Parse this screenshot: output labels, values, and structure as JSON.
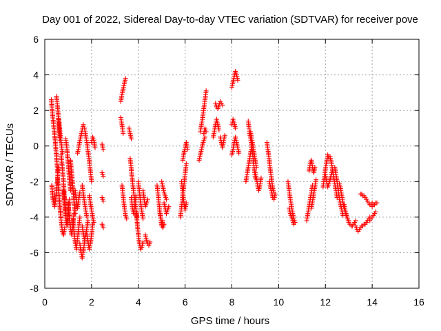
{
  "chart_data": {
    "type": "scatter",
    "title": "Day 001 of 2022, Sidereal Day-to-day VTEC variation (SDTVAR) for receiver pove",
    "xlabel": "GPS time / hours",
    "ylabel": "SDTVAR / TECUs",
    "xlim": [
      0,
      16
    ],
    "ylim": [
      -8,
      6
    ],
    "xticks": [
      0,
      2,
      4,
      6,
      8,
      10,
      12,
      14,
      16
    ],
    "yticks": [
      -8,
      -6,
      -4,
      -2,
      0,
      2,
      4,
      6
    ],
    "xtick_labels": [
      "0",
      "2",
      "4",
      "6",
      "8",
      "10",
      "12",
      "14",
      "16"
    ],
    "ytick_labels": [
      "-8",
      "-6",
      "-4",
      "-2",
      "0",
      "2",
      "4",
      "6"
    ],
    "grid": true,
    "marker": "+",
    "color": "#ff0000",
    "segments": [
      {
        "x": [
          0.28,
          0.33,
          0.4,
          0.45,
          0.5,
          0.55
        ],
        "y": [
          2.6,
          1.8,
          0.9,
          0.2,
          -0.6,
          -1.5
        ]
      },
      {
        "x": [
          0.3,
          0.35,
          0.42,
          0.5,
          0.58
        ],
        "y": [
          -2.2,
          -3.0,
          -3.4,
          -2.6,
          -1.2
        ]
      },
      {
        "x": [
          0.5,
          0.55,
          0.6,
          0.65
        ],
        "y": [
          2.8,
          2.2,
          1.2,
          0.3
        ]
      },
      {
        "x": [
          0.55,
          0.6,
          0.65,
          0.7,
          0.75,
          0.8,
          0.85
        ],
        "y": [
          -1.8,
          -2.6,
          -3.5,
          -4.2,
          -4.8,
          -5.0,
          -4.6
        ]
      },
      {
        "x": [
          0.6,
          0.65,
          0.7,
          0.75
        ],
        "y": [
          1.5,
          0.8,
          0.2,
          -0.4
        ]
      },
      {
        "x": [
          0.7,
          0.75,
          0.8,
          0.85,
          0.9
        ],
        "y": [
          -0.5,
          -1.2,
          -2.0,
          -3.0,
          -3.8
        ]
      },
      {
        "x": [
          0.8,
          0.85,
          0.9,
          0.95,
          1.0,
          1.05
        ],
        "y": [
          -2.5,
          -3.2,
          -4.0,
          -4.5,
          -3.8,
          -3.0
        ]
      },
      {
        "x": [
          0.9,
          0.95,
          1.0,
          1.05,
          1.1
        ],
        "y": [
          0.4,
          -0.2,
          -1.0,
          -1.8,
          -2.5
        ]
      },
      {
        "x": [
          1.0,
          1.05,
          1.1,
          1.15,
          1.2,
          1.25
        ],
        "y": [
          -3.2,
          -4.0,
          -4.6,
          -5.0,
          -4.5,
          -3.8
        ]
      },
      {
        "x": [
          1.1,
          1.15,
          1.2,
          1.25,
          1.3
        ],
        "y": [
          -0.8,
          -1.5,
          -2.3,
          -3.1,
          -3.8
        ]
      },
      {
        "x": [
          1.2,
          1.25,
          1.3,
          1.35,
          1.4,
          1.45,
          1.5
        ],
        "y": [
          -4.2,
          -4.8,
          -5.4,
          -5.8,
          -5.2,
          -4.6,
          -4.0
        ]
      },
      {
        "x": [
          1.3,
          1.35,
          1.4,
          1.45,
          1.5
        ],
        "y": [
          -2.5,
          -3.0,
          -3.5,
          -3.0,
          -2.6
        ]
      },
      {
        "x": [
          1.4,
          1.45,
          1.5,
          1.55,
          1.6,
          1.65
        ],
        "y": [
          -0.4,
          -0.1,
          0.3,
          0.6,
          0.9,
          1.2
        ]
      },
      {
        "x": [
          1.5,
          1.55,
          1.6,
          1.65,
          1.7
        ],
        "y": [
          -5.5,
          -6.0,
          -6.3,
          -5.9,
          -5.4
        ]
      },
      {
        "x": [
          1.6,
          1.65,
          1.7,
          1.75,
          1.8,
          1.85
        ],
        "y": [
          -4.5,
          -4.9,
          -5.3,
          -5.0,
          -4.6,
          -4.2
        ]
      },
      {
        "x": [
          1.6,
          1.65,
          1.7,
          1.75,
          1.8
        ],
        "y": [
          -2.2,
          -2.7,
          -3.2,
          -3.6,
          -4.0
        ]
      },
      {
        "x": [
          1.7,
          1.75,
          1.8,
          1.85,
          1.9,
          1.95,
          2.0
        ],
        "y": [
          1.0,
          0.6,
          0.2,
          -0.3,
          -0.8,
          -1.4,
          -2.0
        ]
      },
      {
        "x": [
          1.8,
          1.85,
          1.9,
          1.95,
          2.0,
          2.05
        ],
        "y": [
          -5.0,
          -5.4,
          -5.8,
          -5.5,
          -5.0,
          -4.4
        ]
      },
      {
        "x": [
          1.9,
          1.95,
          2.0,
          2.05,
          2.1
        ],
        "y": [
          -2.8,
          -3.2,
          -3.6,
          -4.0,
          -4.3
        ]
      },
      {
        "x": [
          2.0,
          2.05,
          2.1,
          2.15
        ],
        "y": [
          0.2,
          0.5,
          0.3,
          -0.1
        ]
      },
      {
        "x": [
          2.45,
          2.5
        ],
        "y": [
          0.1,
          -0.2
        ]
      },
      {
        "x": [
          2.45,
          2.5
        ],
        "y": [
          -1.5,
          -1.7
        ]
      },
      {
        "x": [
          2.45,
          2.5
        ],
        "y": [
          -2.9,
          -3.1
        ]
      },
      {
        "x": [
          2.45,
          2.5
        ],
        "y": [
          -4.4,
          -4.6
        ]
      },
      {
        "x": [
          3.25,
          3.3,
          3.35,
          3.4,
          3.45
        ],
        "y": [
          2.5,
          2.9,
          3.2,
          3.5,
          3.8
        ]
      },
      {
        "x": [
          3.25,
          3.3,
          3.35
        ],
        "y": [
          1.6,
          1.2,
          0.7
        ]
      },
      {
        "x": [
          3.3,
          3.35,
          3.4,
          3.45,
          3.5
        ],
        "y": [
          -2.2,
          -2.8,
          -3.4,
          -3.9,
          -4.1
        ]
      },
      {
        "x": [
          3.6,
          3.65,
          3.7
        ],
        "y": [
          1.0,
          0.7,
          0.4
        ]
      },
      {
        "x": [
          3.65,
          3.7,
          3.75,
          3.8,
          3.85,
          3.9,
          3.95
        ],
        "y": [
          -0.7,
          -1.3,
          -2.0,
          -2.6,
          -3.1,
          -3.6,
          -4.0
        ]
      },
      {
        "x": [
          3.7,
          3.75,
          3.8,
          3.85,
          3.9
        ],
        "y": [
          -2.9,
          -3.5,
          -3.8,
          -3.3,
          -2.8
        ]
      },
      {
        "x": [
          3.9,
          3.95,
          4.0,
          4.05,
          4.1,
          4.15,
          4.2
        ],
        "y": [
          -3.6,
          -4.3,
          -5.0,
          -5.5,
          -5.8,
          -5.7,
          -5.4
        ]
      },
      {
        "x": [
          4.0,
          4.05,
          4.1,
          4.15,
          4.2
        ],
        "y": [
          -2.0,
          -2.6,
          -3.2,
          -3.7,
          -4.1
        ]
      },
      {
        "x": [
          4.2,
          4.25,
          4.3,
          4.35,
          4.4
        ],
        "y": [
          -2.5,
          -3.0,
          -3.4,
          -3.2,
          -3.0
        ]
      },
      {
        "x": [
          4.3,
          4.35,
          4.4,
          4.45,
          4.5
        ],
        "y": [
          -5.0,
          -5.3,
          -5.5,
          -5.6,
          -5.4
        ]
      },
      {
        "x": [
          4.8,
          4.85,
          4.9,
          4.95,
          5.0,
          5.05
        ],
        "y": [
          -2.2,
          -2.8,
          -3.4,
          -4.0,
          -4.5,
          -4.2
        ]
      },
      {
        "x": [
          4.9,
          4.95,
          5.0,
          5.05,
          5.1
        ],
        "y": [
          -3.6,
          -4.0,
          -4.3,
          -4.6,
          -4.4
        ]
      },
      {
        "x": [
          5.0,
          5.05,
          5.1,
          5.15,
          5.2
        ],
        "y": [
          -2.0,
          -2.3,
          -2.6,
          -2.8,
          -3.0
        ]
      },
      {
        "x": [
          5.1,
          5.15,
          5.2,
          5.25,
          5.3
        ],
        "y": [
          -3.2,
          -3.5,
          -3.8,
          -3.6,
          -3.4
        ]
      },
      {
        "x": [
          5.8,
          5.85,
          5.9,
          5.95,
          6.0,
          6.05
        ],
        "y": [
          -4.0,
          -3.4,
          -2.8,
          -2.2,
          -1.6,
          -1.0
        ]
      },
      {
        "x": [
          5.85,
          5.9,
          5.95,
          6.0,
          6.05
        ],
        "y": [
          -2.0,
          -2.6,
          -3.2,
          -3.6,
          -3.2
        ]
      },
      {
        "x": [
          5.9,
          5.95,
          6.0,
          6.05,
          6.1
        ],
        "y": [
          -0.8,
          -0.4,
          -0.1,
          0.2,
          -0.2
        ]
      },
      {
        "x": [
          6.6,
          6.65,
          6.7,
          6.75,
          6.8,
          6.85
        ],
        "y": [
          -0.8,
          -0.5,
          -0.2,
          0.1,
          0.3,
          0.5
        ]
      },
      {
        "x": [
          6.65,
          6.7,
          6.75,
          6.8,
          6.85,
          6.9
        ],
        "y": [
          0.8,
          1.2,
          1.6,
          2.1,
          2.6,
          3.1
        ]
      },
      {
        "x": [
          6.8,
          6.85,
          6.9
        ],
        "y": [
          0.7,
          1.0,
          0.8
        ]
      },
      {
        "x": [
          7.2,
          7.25,
          7.3,
          7.35,
          7.4,
          7.45
        ],
        "y": [
          0.5,
          0.8,
          1.2,
          1.5,
          1.2,
          0.9
        ]
      },
      {
        "x": [
          7.3,
          7.35,
          7.4,
          7.45,
          7.5,
          7.55,
          7.6
        ],
        "y": [
          2.4,
          2.2,
          2.1,
          2.3,
          2.5,
          2.4,
          2.3
        ]
      },
      {
        "x": [
          7.5,
          7.55,
          7.6,
          7.65,
          7.7
        ],
        "y": [
          0.5,
          0.2,
          -0.1,
          0.3,
          0.6
        ]
      },
      {
        "x": [
          8.0,
          8.05,
          8.1,
          8.15,
          8.2,
          8.25
        ],
        "y": [
          3.3,
          3.6,
          3.9,
          4.2,
          4.0,
          3.7
        ]
      },
      {
        "x": [
          8.0,
          8.05,
          8.1,
          8.15
        ],
        "y": [
          1.2,
          1.5,
          1.3,
          1.0
        ]
      },
      {
        "x": [
          8.0,
          8.05,
          8.1,
          8.15,
          8.2,
          8.25,
          8.3
        ],
        "y": [
          -0.5,
          -0.2,
          0.2,
          0.5,
          0.2,
          -0.1,
          -0.4
        ]
      },
      {
        "x": [
          8.6,
          8.65,
          8.7,
          8.75,
          8.8,
          8.85
        ],
        "y": [
          -2.0,
          -1.6,
          -1.2,
          -0.8,
          -0.4,
          0.0
        ]
      },
      {
        "x": [
          8.7,
          8.75,
          8.8,
          8.85,
          8.9,
          8.95,
          9.0
        ],
        "y": [
          1.4,
          0.8,
          0.4,
          0.0,
          -0.6,
          -1.2,
          -1.8
        ]
      },
      {
        "x": [
          8.8,
          8.85,
          8.9,
          8.95,
          9.0,
          9.05
        ],
        "y": [
          0.8,
          0.4,
          0.0,
          -0.4,
          -0.8,
          -1.2
        ]
      },
      {
        "x": [
          9.0,
          9.05,
          9.1,
          9.15,
          9.2,
          9.25
        ],
        "y": [
          -1.5,
          -1.8,
          -2.2,
          -2.5,
          -2.2,
          -1.8
        ]
      },
      {
        "x": [
          9.5,
          9.55,
          9.6,
          9.65,
          9.7,
          9.75,
          9.8
        ],
        "y": [
          0.2,
          -0.3,
          -0.8,
          -1.4,
          -1.9,
          -2.4,
          -2.6
        ]
      },
      {
        "x": [
          9.6,
          9.65,
          9.7,
          9.75,
          9.8,
          9.85
        ],
        "y": [
          -2.0,
          -2.3,
          -2.6,
          -2.9,
          -3.0,
          -2.7
        ]
      },
      {
        "x": [
          10.4,
          10.45,
          10.5,
          10.55,
          10.6,
          10.65,
          10.7
        ],
        "y": [
          -2.0,
          -2.5,
          -3.0,
          -3.4,
          -3.8,
          -4.1,
          -4.3
        ]
      },
      {
        "x": [
          10.45,
          10.5,
          10.55,
          10.6,
          10.65
        ],
        "y": [
          -3.5,
          -3.8,
          -4.0,
          -4.2,
          -4.4
        ]
      },
      {
        "x": [
          11.2,
          11.25,
          11.3,
          11.35,
          11.4,
          11.45
        ],
        "y": [
          -4.2,
          -3.8,
          -3.4,
          -3.0,
          -2.6,
          -2.2
        ]
      },
      {
        "x": [
          11.3,
          11.35,
          11.4,
          11.45,
          11.5,
          11.55
        ],
        "y": [
          -1.4,
          -1.0,
          -0.8,
          -1.2,
          -1.5,
          -1.2
        ]
      },
      {
        "x": [
          11.4,
          11.45,
          11.5,
          11.55,
          11.6
        ],
        "y": [
          -3.5,
          -3.1,
          -2.7,
          -2.3,
          -1.9
        ]
      },
      {
        "x": [
          11.9,
          11.95,
          12.0,
          12.05,
          12.1,
          12.15
        ],
        "y": [
          -2.3,
          -1.8,
          -1.3,
          -0.9,
          -0.5,
          -0.7
        ]
      },
      {
        "x": [
          12.0,
          12.05,
          12.1,
          12.15,
          12.2,
          12.25,
          12.3
        ],
        "y": [
          -1.6,
          -2.0,
          -2.3,
          -2.1,
          -1.9,
          -1.6,
          -1.4
        ]
      },
      {
        "x": [
          12.2,
          12.25,
          12.3,
          12.35,
          12.4,
          12.45,
          12.5
        ],
        "y": [
          -0.6,
          -0.9,
          -1.3,
          -1.7,
          -2.1,
          -2.5,
          -2.9
        ]
      },
      {
        "x": [
          12.4,
          12.45,
          12.5,
          12.55,
          12.6,
          12.65,
          12.7,
          12.75
        ],
        "y": [
          -1.2,
          -1.6,
          -2.0,
          -2.5,
          -3.0,
          -3.3,
          -3.6,
          -3.9
        ]
      },
      {
        "x": [
          12.6,
          12.65,
          12.7,
          12.75,
          12.8,
          12.85,
          12.9,
          12.95,
          13.0
        ],
        "y": [
          -2.1,
          -2.4,
          -2.8,
          -3.2,
          -3.5,
          -3.7,
          -3.9,
          -4.1,
          -4.2
        ]
      },
      {
        "x": [
          12.8,
          12.85,
          12.9,
          12.95,
          13.0,
          13.05,
          13.1,
          13.15,
          13.2,
          13.25,
          13.3
        ],
        "y": [
          -3.3,
          -3.6,
          -3.9,
          -4.1,
          -4.3,
          -4.4,
          -4.5,
          -4.5,
          -4.4,
          -4.3,
          -4.2
        ]
      },
      {
        "x": [
          13.3,
          13.35,
          13.4,
          13.45,
          13.5,
          13.55,
          13.6,
          13.65,
          13.7,
          13.75,
          13.8,
          13.85,
          13.9
        ],
        "y": [
          -4.5,
          -4.7,
          -4.8,
          -4.7,
          -4.6,
          -4.5,
          -4.5,
          -4.4,
          -4.4,
          -4.3,
          -4.2,
          -4.1,
          -4.0
        ]
      },
      {
        "x": [
          13.5,
          13.55,
          13.6,
          13.65,
          13.7,
          13.75,
          13.8,
          13.85,
          13.9,
          13.95,
          14.0
        ],
        "y": [
          -2.7,
          -2.7,
          -2.8,
          -2.8,
          -2.9,
          -3.0,
          -3.1,
          -3.2,
          -3.3,
          -3.3,
          -3.2
        ]
      },
      {
        "x": [
          13.9,
          13.95,
          14.0,
          14.05,
          14.1,
          14.15
        ],
        "y": [
          -4.2,
          -4.1,
          -4.0,
          -3.9,
          -3.8,
          -3.7
        ]
      },
      {
        "x": [
          14.0,
          14.05,
          14.1,
          14.15,
          14.2
        ],
        "y": [
          -3.4,
          -3.3,
          -3.3,
          -3.2,
          -3.2
        ]
      }
    ]
  }
}
